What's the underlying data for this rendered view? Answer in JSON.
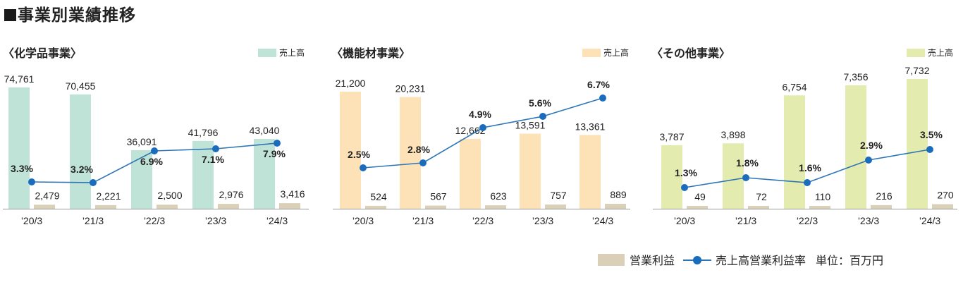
{
  "title": "事業別業績推移",
  "legend": {
    "operating_profit": "営業利益",
    "margin": "売上高営業利益率",
    "unit": "単位：百万円"
  },
  "colors": {
    "chemical": "#bfe3d6",
    "machinery": "#fde2b8",
    "other": "#e3ecae",
    "operating_profit": "#d9d0b7",
    "line": "#2e75b6"
  },
  "chart_data": [
    {
      "type": "bar",
      "title": "〈化学品事業〉",
      "legend_label": "売上高",
      "categories": [
        "’20/3",
        "’21/3",
        "’22/3",
        "’23/3",
        "’24/3"
      ],
      "series": [
        {
          "name": "売上高",
          "values": [
            74761,
            70455,
            36091,
            41796,
            43040
          ],
          "labels": [
            "74,761",
            "70,455",
            "36,091",
            "41,796",
            "43,040"
          ]
        },
        {
          "name": "営業利益",
          "values": [
            2479,
            2221,
            2500,
            2976,
            3416
          ],
          "labels": [
            "2,479",
            "2,221",
            "2,500",
            "2,976",
            "3,416"
          ]
        },
        {
          "name": "売上高営業利益率",
          "type": "line",
          "values": [
            3.3,
            3.2,
            6.9,
            7.1,
            7.9
          ],
          "labels": [
            "3.3%",
            "3.2%",
            "6.9%",
            "7.1%",
            "7.9%"
          ]
        }
      ]
    },
    {
      "type": "bar",
      "title": "〈機能材事業〉",
      "legend_label": "売上高",
      "categories": [
        "’20/3",
        "’21/3",
        "’22/3",
        "’23/3",
        "’24/3"
      ],
      "series": [
        {
          "name": "売上高",
          "values": [
            21200,
            20231,
            12662,
            13591,
            13361
          ],
          "labels": [
            "21,200",
            "20,231",
            "12,662",
            "13,591",
            "13,361"
          ]
        },
        {
          "name": "営業利益",
          "values": [
            524,
            567,
            623,
            757,
            889
          ],
          "labels": [
            "524",
            "567",
            "623",
            "757",
            "889"
          ]
        },
        {
          "name": "売上高営業利益率",
          "type": "line",
          "values": [
            2.5,
            2.8,
            4.9,
            5.6,
            6.7
          ],
          "labels": [
            "2.5%",
            "2.8%",
            "4.9%",
            "5.6%",
            "6.7%"
          ]
        }
      ]
    },
    {
      "type": "bar",
      "title": "〈その他事業〉",
      "legend_label": "売上高",
      "categories": [
        "’20/3",
        "’21/3",
        "’22/3",
        "’23/3",
        "’24/3"
      ],
      "series": [
        {
          "name": "売上高",
          "values": [
            3787,
            3898,
            6754,
            7356,
            7732
          ],
          "labels": [
            "3,787",
            "3,898",
            "6,754",
            "7,356",
            "7,732"
          ]
        },
        {
          "name": "営業利益",
          "values": [
            49,
            72,
            110,
            216,
            270
          ],
          "labels": [
            "49",
            "72",
            "110",
            "216",
            "270"
          ]
        },
        {
          "name": "売上高営業利益率",
          "type": "line",
          "values": [
            1.3,
            1.8,
            1.6,
            2.9,
            3.5
          ],
          "labels": [
            "1.3%",
            "1.8%",
            "1.6%",
            "2.9%",
            "3.5%"
          ]
        }
      ]
    }
  ]
}
